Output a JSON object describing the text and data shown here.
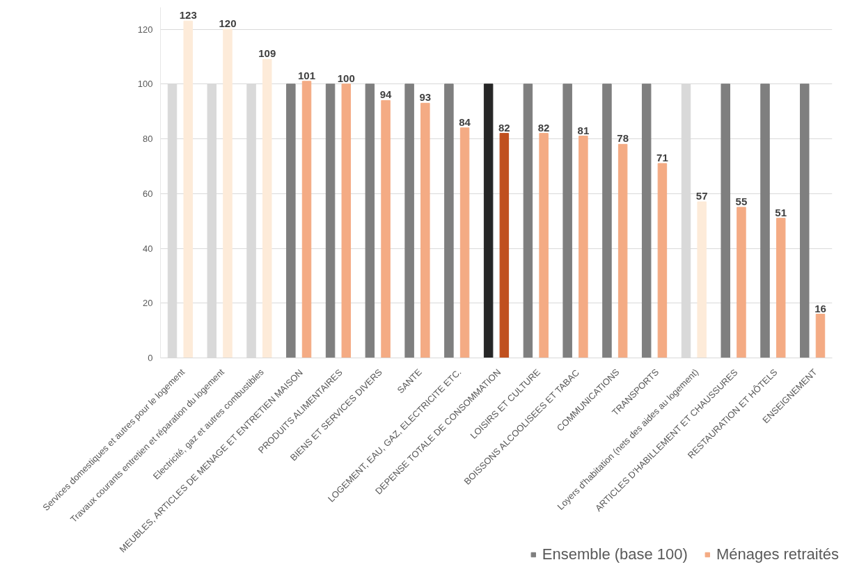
{
  "chart_data": {
    "type": "bar",
    "categories": [
      "Services domestiques et autres pour le logement",
      "Travaux courants entretien et réparation du logement",
      "Electricité, gaz et autres combustibles",
      "MEUBLES, ARTICLES DE MENAGE ET ENTRETIEN MAISON",
      "PRODUITS ALIMENTAIRES",
      "BIENS ET SERVICES DIVERS",
      "SANTE",
      "LOGEMENT, EAU, GAZ, ELECTRICITE ETC.",
      "DEPENSE TOTALE DE CONSOMMATION",
      "LOISIRS ET CULTURE",
      "BOISSONS ALCOOLISEES ET TABAC",
      "COMMUNICATIONS",
      "TRANSPORTS",
      "Loyers d'habitation (nets des aides au logement)",
      "ARTICLES D'HABILLEMENT ET CHAUSSURES",
      "RESTAURATION ET HÔTELS",
      "ENSEIGNEMENT"
    ],
    "series": [
      {
        "name": "Ensemble (base 100)",
        "color": "#7f7f7f",
        "colors": [
          "#d9d9d9",
          "#d9d9d9",
          "#d9d9d9",
          "#7f7f7f",
          "#7f7f7f",
          "#7f7f7f",
          "#7f7f7f",
          "#7f7f7f",
          "#262626",
          "#7f7f7f",
          "#7f7f7f",
          "#7f7f7f",
          "#7f7f7f",
          "#d9d9d9",
          "#7f7f7f",
          "#7f7f7f",
          "#7f7f7f"
        ],
        "values": [
          100,
          100,
          100,
          100,
          100,
          100,
          100,
          100,
          100,
          100,
          100,
          100,
          100,
          100,
          100,
          100,
          100
        ]
      },
      {
        "name": "Ménages retraités",
        "color": "#f4ab84",
        "colors": [
          "#fdebd9",
          "#fdebd9",
          "#fdebd9",
          "#f4ab84",
          "#f4ab84",
          "#f4ab84",
          "#f4ab84",
          "#f4ab84",
          "#c0501f",
          "#f4ab84",
          "#f4ab84",
          "#f4ab84",
          "#f4ab84",
          "#fdebd9",
          "#f4ab84",
          "#f4ab84",
          "#f4ab84"
        ],
        "values": [
          123,
          120,
          109,
          101,
          100,
          94,
          93,
          84,
          82,
          82,
          81,
          78,
          71,
          57,
          55,
          51,
          16
        ],
        "data_labels": true
      }
    ],
    "ylim": [
      0,
      128
    ],
    "yticks": [
      0,
      20,
      40,
      60,
      80,
      100,
      120
    ],
    "grid": "y",
    "legend": "bottom right"
  }
}
